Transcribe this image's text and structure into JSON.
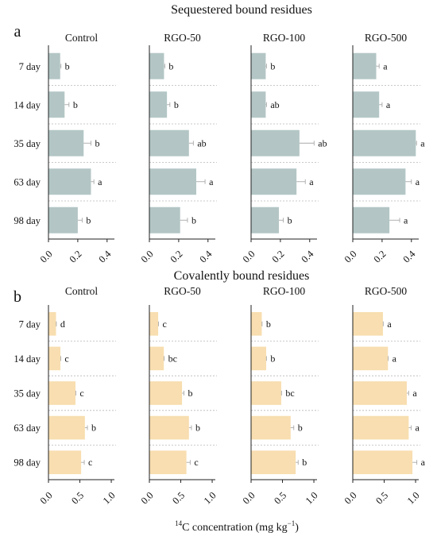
{
  "figure": {
    "xlabel_pre": "14",
    "xlabel_main": "C concentration (mg kg",
    "xlabel_sup": "−1",
    "xlabel_post": ")"
  },
  "chart_data": [
    {
      "type": "bar",
      "orientation": "horizontal",
      "panel_letter": "a",
      "title": "Sequestered  bound residues",
      "bar_color": "#b3c6c5",
      "categories": [
        "7 day",
        "14 day",
        "35 day",
        "63 day",
        "98 day"
      ],
      "xlim": [
        0,
        0.45
      ],
      "xticks": [
        "0.0",
        "0.2",
        "0.4"
      ],
      "xtick_values": [
        0,
        0.2,
        0.4
      ],
      "treatments": [
        {
          "name": "Control",
          "values": [
            0.08,
            0.11,
            0.24,
            0.29,
            0.2
          ],
          "errors": [
            0.005,
            0.03,
            0.05,
            0.02,
            0.03
          ],
          "letters": [
            "b",
            "b",
            "b",
            "a",
            "b"
          ]
        },
        {
          "name": "RGO-50",
          "values": [
            0.1,
            0.12,
            0.27,
            0.32,
            0.21
          ],
          "errors": [
            0.005,
            0.02,
            0.03,
            0.06,
            0.05
          ],
          "letters": [
            "b",
            "b",
            "ab",
            "a",
            "b"
          ]
        },
        {
          "name": "RGO-100",
          "values": [
            0.1,
            0.1,
            0.33,
            0.31,
            0.19
          ],
          "errors": [
            0.005,
            0.005,
            0.1,
            0.06,
            0.03
          ],
          "letters": [
            "b",
            "ab",
            "ab",
            "a",
            "b"
          ]
        },
        {
          "name": "RGO-500",
          "values": [
            0.16,
            0.18,
            0.43,
            0.36,
            0.25
          ],
          "errors": [
            0.02,
            0.02,
            0.005,
            0.04,
            0.07
          ],
          "letters": [
            "a",
            "a",
            "a",
            "a",
            "a"
          ]
        }
      ]
    },
    {
      "type": "bar",
      "orientation": "horizontal",
      "panel_letter": "b",
      "title": "Covalently bound residues",
      "bar_color": "#f8deb0",
      "categories": [
        "7 day",
        "14 day",
        "35 day",
        "63 day",
        "98 day"
      ],
      "xlim": [
        0,
        1.05
      ],
      "xticks": [
        "0.0",
        "0.5",
        "1.0"
      ],
      "xtick_values": [
        0,
        0.5,
        1.0
      ],
      "treatments": [
        {
          "name": "Control",
          "values": [
            0.12,
            0.19,
            0.43,
            0.58,
            0.52
          ],
          "errors": [
            0.005,
            0.005,
            0.005,
            0.04,
            0.05
          ],
          "letters": [
            "d",
            "c",
            "c",
            "b",
            "c"
          ]
        },
        {
          "name": "RGO-50",
          "values": [
            0.14,
            0.23,
            0.52,
            0.63,
            0.59
          ],
          "errors": [
            0.005,
            0.005,
            0.03,
            0.04,
            0.06
          ],
          "letters": [
            "c",
            "bc",
            "b",
            "b",
            "c"
          ]
        },
        {
          "name": "RGO-100",
          "values": [
            0.17,
            0.24,
            0.48,
            0.63,
            0.71
          ],
          "errors": [
            0.005,
            0.005,
            0.005,
            0.05,
            0.04
          ],
          "letters": [
            "b",
            "b",
            "bc",
            "b",
            "b"
          ]
        },
        {
          "name": "RGO-500",
          "values": [
            0.48,
            0.56,
            0.86,
            0.89,
            0.95
          ],
          "errors": [
            0.005,
            0.005,
            0.03,
            0.04,
            0.07
          ],
          "letters": [
            "a",
            "a",
            "a",
            "a",
            "a"
          ]
        }
      ]
    }
  ]
}
